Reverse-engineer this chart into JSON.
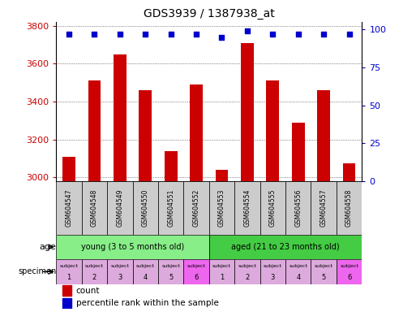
{
  "title": "GDS3939 / 1387938_at",
  "samples": [
    "GSM604547",
    "GSM604548",
    "GSM604549",
    "GSM604550",
    "GSM604551",
    "GSM604552",
    "GSM604553",
    "GSM604554",
    "GSM604555",
    "GSM604556",
    "GSM604557",
    "GSM604558"
  ],
  "counts": [
    3110,
    3510,
    3650,
    3460,
    3140,
    3490,
    3040,
    3710,
    3510,
    3290,
    3460,
    3075
  ],
  "percentiles": [
    97,
    97,
    97,
    97,
    97,
    97,
    95,
    99,
    97,
    97,
    97,
    97
  ],
  "ylim_left": [
    2980,
    3820
  ],
  "ylim_right": [
    0,
    105
  ],
  "yticks_left": [
    3000,
    3200,
    3400,
    3600,
    3800
  ],
  "yticks_right": [
    0,
    25,
    50,
    75,
    100
  ],
  "bar_color": "#cc0000",
  "dot_color": "#0000cc",
  "age_groups": [
    {
      "label": "young (3 to 5 months old)",
      "start": 0,
      "end": 6,
      "color": "#88ee88"
    },
    {
      "label": "aged (21 to 23 months old)",
      "start": 6,
      "end": 12,
      "color": "#44cc44"
    }
  ],
  "specimen_colors_young": [
    "#ddaadd",
    "#ddaadd",
    "#ddaadd",
    "#ddaadd",
    "#ddaadd",
    "#ee66ee"
  ],
  "specimen_colors_aged": [
    "#ddaadd",
    "#ddaadd",
    "#ddaadd",
    "#ddaadd",
    "#ddaadd",
    "#ee66ee"
  ],
  "subject_numbers_young": [
    "1",
    "2",
    "3",
    "4",
    "5",
    "6"
  ],
  "subject_numbers_aged": [
    "1",
    "2",
    "3",
    "4",
    "5",
    "6"
  ],
  "grid_color": "#555555",
  "tick_label_color_left": "#cc0000",
  "tick_label_color_right": "#0000cc",
  "bg_color": "#ffffff",
  "xticklabel_bg": "#cccccc",
  "bar_width": 0.5
}
